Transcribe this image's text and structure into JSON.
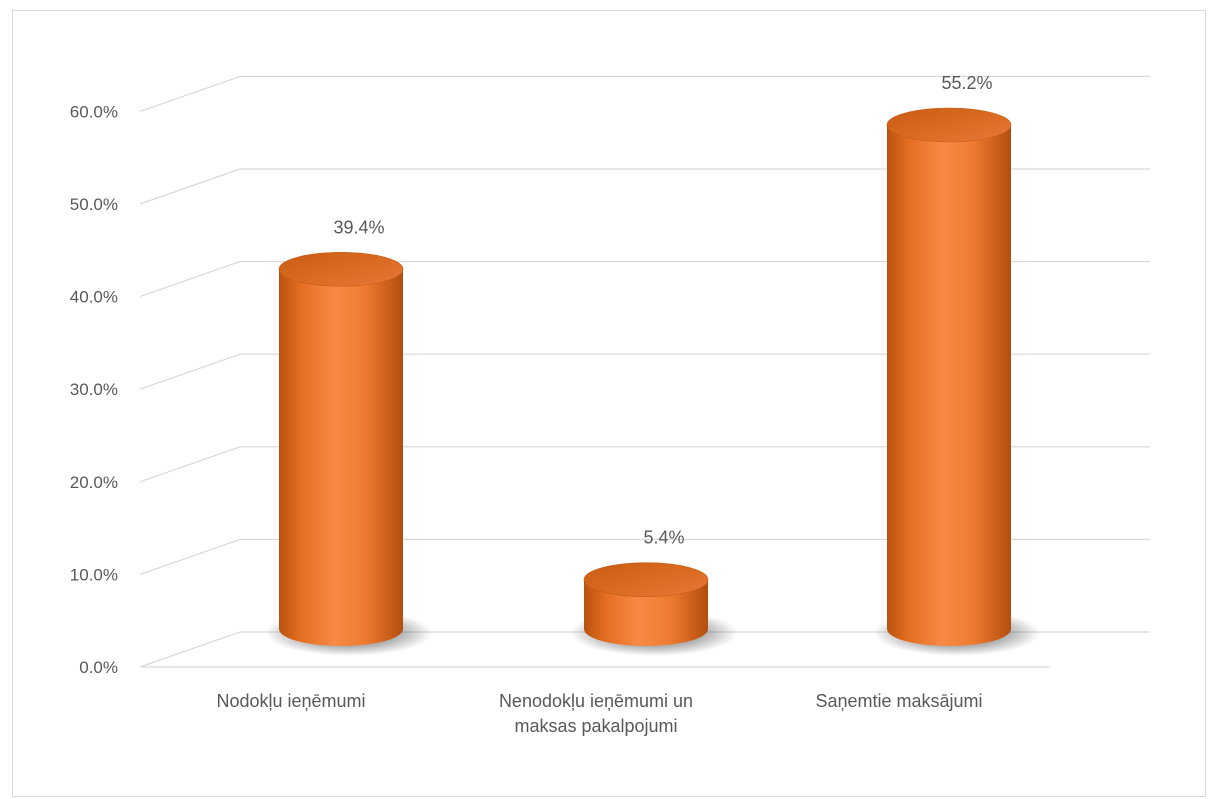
{
  "chart_data": {
    "type": "bar",
    "style": "3d-cylinder",
    "categories": [
      [
        "Nodokļu ieņēmumi"
      ],
      [
        "Nenodokļu ieņēmumi un",
        "maksas pakalpojumi"
      ],
      [
        "Saņemtie maksājumi"
      ]
    ],
    "values": [
      39.4,
      5.4,
      55.2
    ],
    "data_labels": [
      "39.4%",
      "5.4%",
      "55.2%"
    ],
    "ylim": [
      0,
      60
    ],
    "yticks": [
      "0.0%",
      "10.0%",
      "20.0%",
      "30.0%",
      "40.0%",
      "50.0%",
      "60.0%"
    ],
    "grid": true,
    "legend": false,
    "colors": {
      "bar": "#ed7d31",
      "bar_dark": "#b34f10",
      "bar_light": "#f79a5a",
      "grid": "#d9d9d9",
      "text": "#595959"
    }
  }
}
